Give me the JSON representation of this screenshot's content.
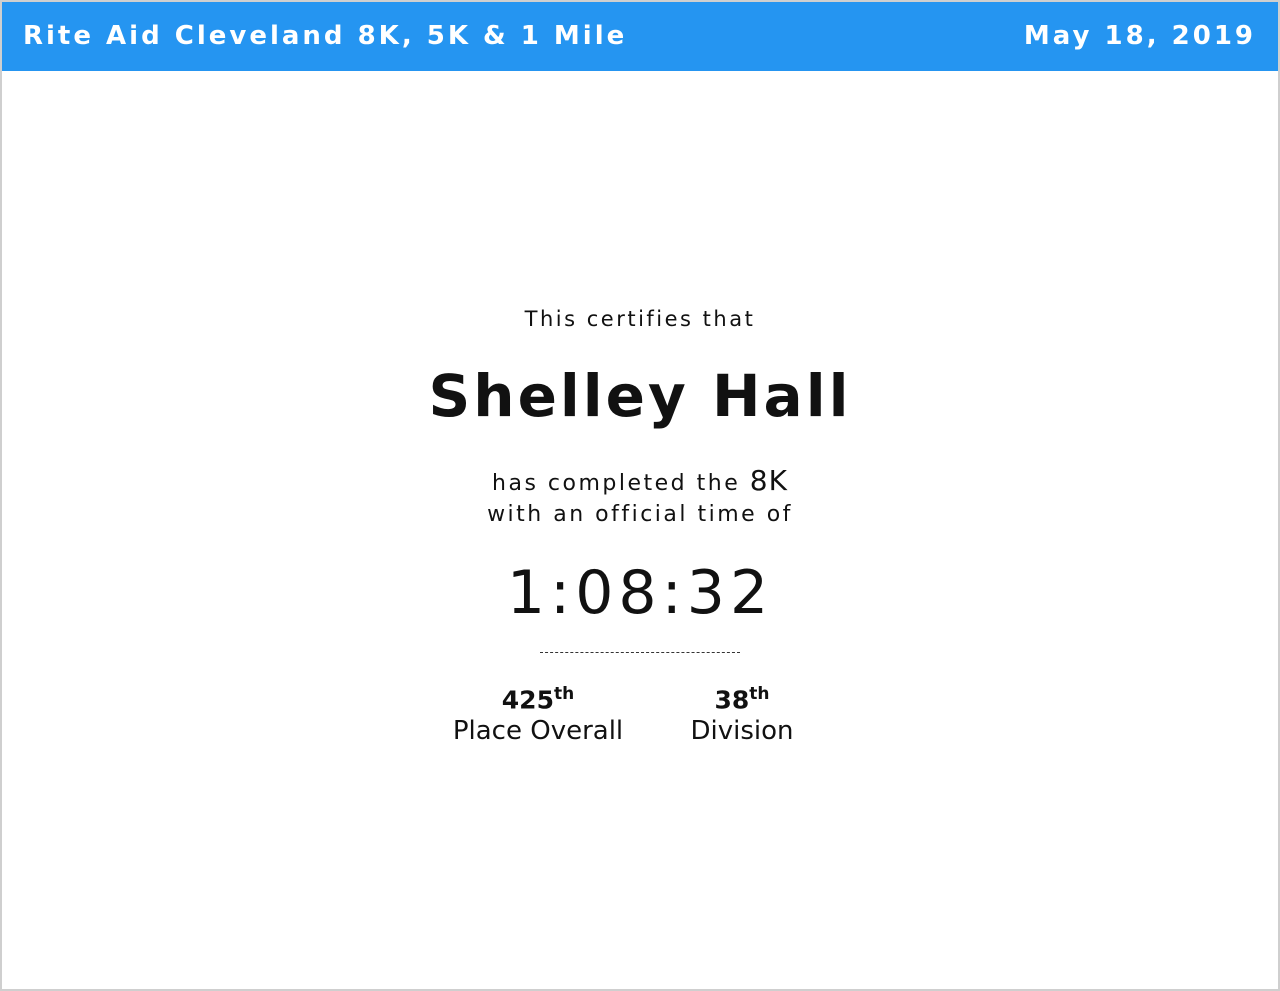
{
  "header": {
    "title": "Rite Aid Cleveland 8K, 5K & 1 Mile",
    "date": "May 18, 2019",
    "color": "#2595f1"
  },
  "certificate": {
    "intro": "This certifies that",
    "name": "Shelley Hall",
    "completed_prefix": "has completed the",
    "race": "8K",
    "time_prefix": "with an official time of",
    "time": "1:08:32"
  },
  "stats": [
    {
      "value": "425",
      "suffix": "th",
      "label": "Place Overall"
    },
    {
      "value": "38",
      "suffix": "th",
      "label": "Division"
    }
  ]
}
